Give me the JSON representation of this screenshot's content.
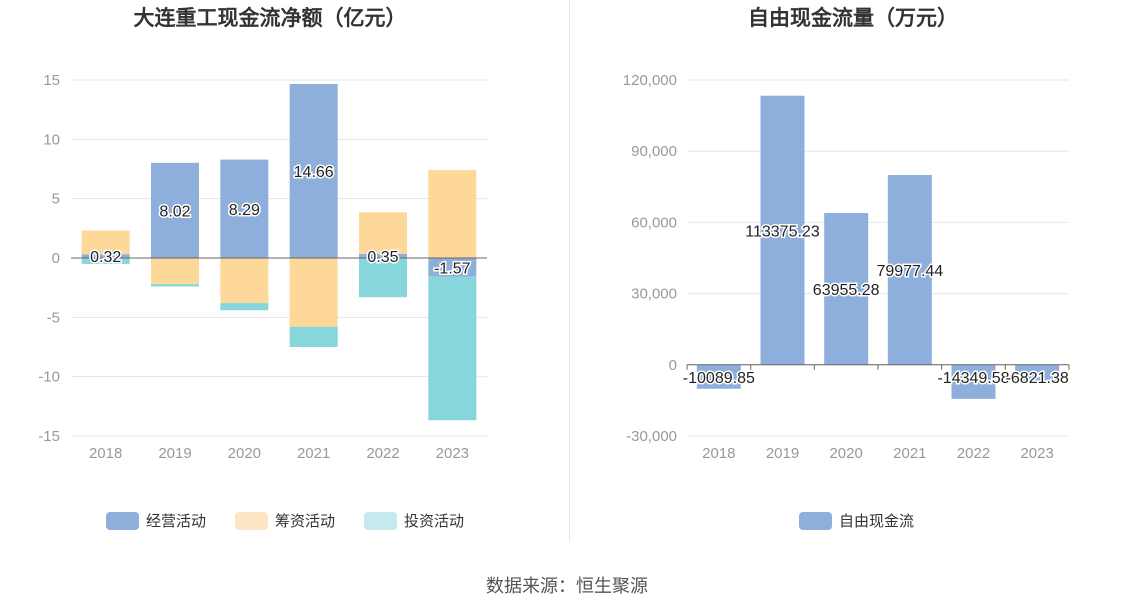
{
  "footer": {
    "source": "数据来源：恒生聚源"
  },
  "chart_data": [
    {
      "type": "bar",
      "stacked": true,
      "title": "大连重工现金流净额（亿元）",
      "categories": [
        "2018",
        "2019",
        "2020",
        "2021",
        "2022",
        "2023"
      ],
      "ylim": [
        -15,
        15
      ],
      "yticks": [
        "15",
        "10",
        "5",
        "0",
        "-5",
        "-10",
        "-15"
      ],
      "ytick_values": [
        15,
        10,
        5,
        0,
        -5,
        -10,
        -15
      ],
      "grid": true,
      "legend_position": "bottom",
      "series": [
        {
          "name": "经营活动",
          "color": "#8eaedb",
          "legend_color": "#8eaedb",
          "values": [
            0.32,
            8.02,
            8.29,
            14.66,
            0.35,
            -1.57
          ],
          "labels": [
            "0.32",
            "8.02",
            "8.29",
            "14.66",
            "0.35",
            "-1.57"
          ]
        },
        {
          "name": "筹资活动",
          "color": "#fdd898",
          "legend_color": "#fde6c6",
          "values": [
            2.0,
            -2.2,
            -3.8,
            -5.8,
            3.5,
            7.4
          ]
        },
        {
          "name": "投资活动",
          "color": "#86d6db",
          "legend_color": "#c4eaee",
          "values": [
            -0.5,
            -0.2,
            -0.6,
            -1.7,
            -3.3,
            -12.1
          ]
        }
      ]
    },
    {
      "type": "bar",
      "title": "自由现金流量（万元）",
      "categories": [
        "2018",
        "2019",
        "2020",
        "2021",
        "2022",
        "2023"
      ],
      "ylim": [
        -30000,
        120000
      ],
      "yticks": [
        "120,000",
        "90,000",
        "60,000",
        "30,000",
        "0",
        "-30,000"
      ],
      "ytick_values": [
        120000,
        90000,
        60000,
        30000,
        0,
        -30000
      ],
      "grid": true,
      "legend_position": "bottom",
      "series": [
        {
          "name": "自由现金流",
          "color": "#8eaedb",
          "legend_color": "#8eaedb",
          "values": [
            -10089.85,
            113375.23,
            63955.28,
            79977.44,
            -14349.58,
            -6821.38
          ],
          "labels": [
            "-10089.85",
            "113375.23",
            "63955.28",
            "79977.44",
            "-14349.58",
            "-6821.38"
          ]
        }
      ]
    }
  ]
}
